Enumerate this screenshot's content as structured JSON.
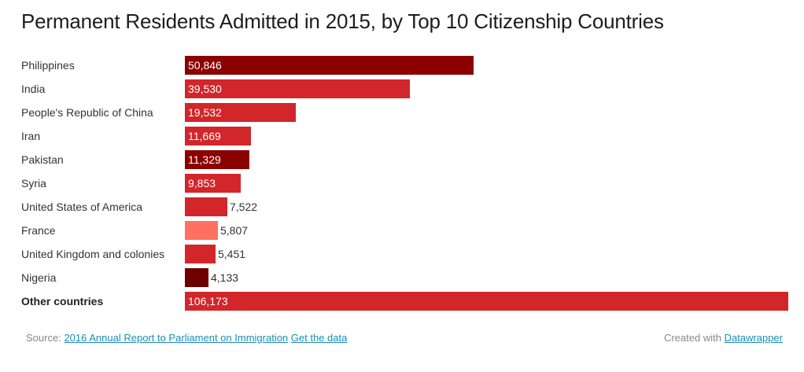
{
  "chart_data": {
    "type": "bar",
    "orientation": "horizontal",
    "title": "Permanent Residents Admitted in 2015, by Top 10 Citizenship Countries",
    "xlabel": "",
    "ylabel": "",
    "xlim": [
      0,
      106173
    ],
    "grid": false,
    "categories": [
      "Philippines",
      "India",
      "People's Republic of China",
      "Iran",
      "Pakistan",
      "Syria",
      "United States of America",
      "France",
      "United Kingdom and colonies",
      "Nigeria",
      "Other countries"
    ],
    "values": [
      50846,
      39530,
      19532,
      11669,
      11329,
      9853,
      7522,
      5807,
      5451,
      4133,
      106173
    ],
    "value_labels": [
      "50,846",
      "39,530",
      "19,532",
      "11,669",
      "11,329",
      "9,853",
      "7,522",
      "5,807",
      "5,451",
      "4,133",
      "106,173"
    ],
    "colors": [
      "#8b0000",
      "#d2262a",
      "#d2262a",
      "#d2262a",
      "#8b0000",
      "#d2262a",
      "#d2262a",
      "#ff7060",
      "#d2262a",
      "#6e0000",
      "#d2262a"
    ],
    "bold_categories": [
      "Other countries"
    ]
  },
  "footer": {
    "source_prefix": "Source:",
    "source_link": "2016 Annual Report to Parliament on Immigration",
    "get_data_link": "Get the data",
    "created_with": "Created with",
    "datawrapper_link": "Datawrapper"
  }
}
